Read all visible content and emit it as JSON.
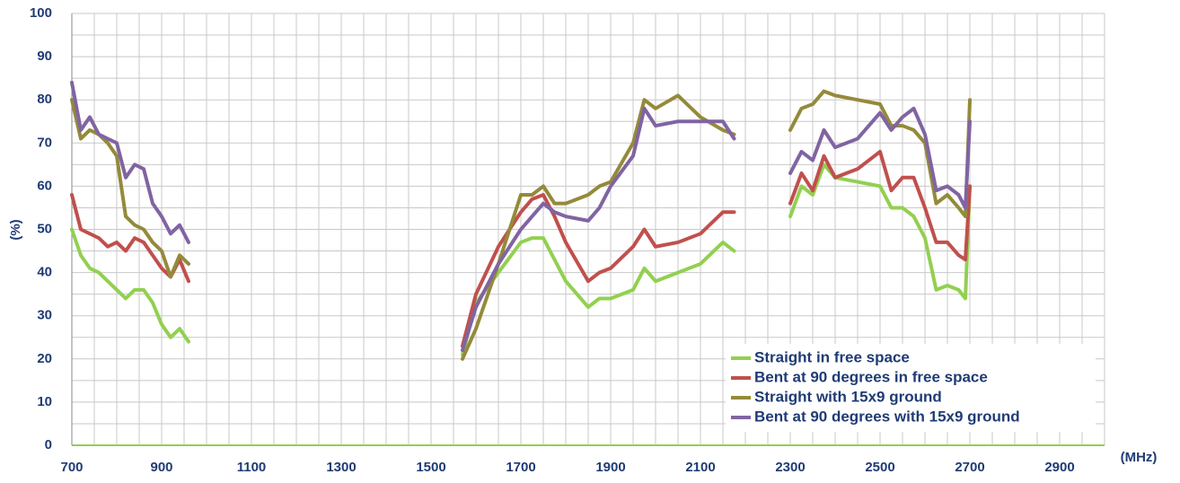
{
  "chart_data": {
    "type": "line",
    "x_label": "(MHz)",
    "y_label": "(%)",
    "x": [
      700,
      720,
      740,
      760,
      780,
      800,
      820,
      840,
      860,
      880,
      900,
      920,
      940,
      960,
      1200,
      1570,
      1600,
      1650,
      1700,
      1725,
      1750,
      1775,
      1800,
      1850,
      1875,
      1900,
      1950,
      1975,
      2000,
      2050,
      2100,
      2150,
      2175,
      2240,
      2300,
      2325,
      2350,
      2375,
      2400,
      2450,
      2500,
      2525,
      2550,
      2575,
      2600,
      2625,
      2650,
      2675,
      2690,
      2700
    ],
    "series": [
      {
        "name": "Straight in free space",
        "color": "#92d050",
        "values": [
          50,
          44,
          41,
          40,
          38,
          36,
          34,
          36,
          36,
          33,
          28,
          25,
          27,
          24,
          null,
          21,
          33,
          40,
          47,
          48,
          48,
          43,
          38,
          32,
          34,
          34,
          36,
          41,
          38,
          40,
          42,
          47,
          45,
          null,
          53,
          60,
          58,
          65,
          62,
          61,
          60,
          55,
          55,
          53,
          48,
          36,
          37,
          36,
          34,
          60
        ]
      },
      {
        "name": "Bent at 90 degrees in free space",
        "color": "#c0504d",
        "values": [
          58,
          50,
          49,
          48,
          46,
          47,
          45,
          48,
          47,
          44,
          41,
          39,
          43,
          38,
          null,
          23,
          35,
          46,
          54,
          57,
          58,
          53,
          47,
          38,
          40,
          41,
          46,
          50,
          46,
          47,
          49,
          54,
          54,
          null,
          56,
          63,
          59,
          67,
          62,
          64,
          68,
          59,
          62,
          62,
          55,
          47,
          47,
          44,
          43,
          60
        ]
      },
      {
        "name": "Straight with 15x9 ground",
        "color": "#948a3a",
        "values": [
          80,
          71,
          73,
          72,
          70,
          67,
          53,
          51,
          50,
          47,
          45,
          39,
          44,
          42,
          null,
          20,
          27,
          42,
          58,
          58,
          60,
          56,
          56,
          58,
          60,
          61,
          70,
          80,
          78,
          81,
          76,
          73,
          72,
          null,
          73,
          78,
          79,
          82,
          81,
          80,
          79,
          74,
          74,
          73,
          70,
          56,
          58,
          55,
          53,
          80
        ]
      },
      {
        "name": "Bent at 90 degrees with 15x9 ground",
        "color": "#8064a2",
        "values": [
          84,
          73,
          76,
          72,
          71,
          70,
          62,
          65,
          64,
          56,
          53,
          49,
          51,
          47,
          null,
          22,
          32,
          42,
          50,
          53,
          56,
          54,
          53,
          52,
          55,
          60,
          67,
          78,
          74,
          75,
          75,
          75,
          71,
          null,
          63,
          68,
          66,
          73,
          69,
          71,
          77,
          73,
          76,
          78,
          72,
          59,
          60,
          58,
          55,
          75
        ]
      }
    ],
    "xlim": [
      700,
      3000
    ],
    "ylim": [
      0,
      100
    ],
    "xticks": [
      700,
      900,
      1100,
      1300,
      1500,
      1700,
      1900,
      2100,
      2300,
      2500,
      2700,
      2900
    ],
    "yticks": [
      0,
      10,
      20,
      30,
      40,
      50,
      60,
      70,
      80,
      90,
      100
    ],
    "xgrid": [
      750,
      800,
      850,
      950,
      1000,
      1050,
      1150,
      1200,
      1250,
      1350,
      1400,
      1450,
      1550,
      1600,
      1650,
      1750,
      1800,
      1850,
      1950,
      2000,
      2050,
      2150,
      2200,
      2250,
      2350,
      2400,
      2450,
      2550,
      2600,
      2650,
      2750,
      2800,
      2850,
      2950,
      3000
    ],
    "ygrid": [
      5,
      15,
      25,
      35,
      45,
      55,
      65,
      75,
      85,
      95
    ],
    "grid": true,
    "legend": "lower right"
  }
}
